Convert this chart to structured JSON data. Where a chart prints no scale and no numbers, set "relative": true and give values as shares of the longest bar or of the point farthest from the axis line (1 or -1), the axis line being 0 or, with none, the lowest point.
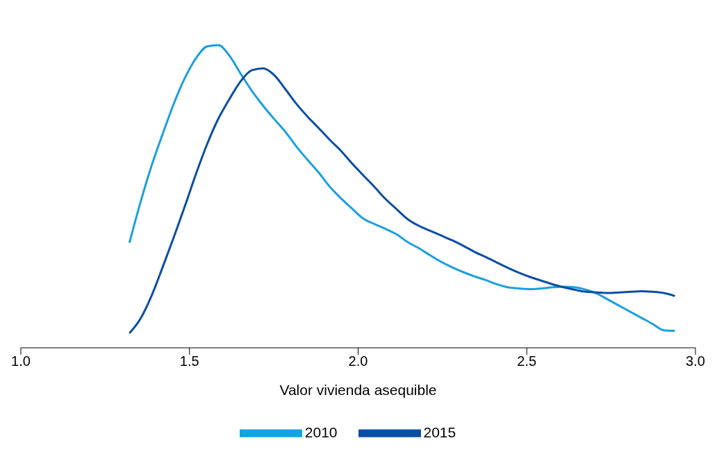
{
  "chart_data": {
    "type": "line",
    "relative": true,
    "xlabel": "Valor vivienda asequible",
    "xlim": [
      1.0,
      3.0
    ],
    "xticks": [
      {
        "value": 1.0,
        "label": "1.0"
      },
      {
        "value": 1.5,
        "label": "1.5"
      },
      {
        "value": 2.0,
        "label": "2.0"
      },
      {
        "value": 2.5,
        "label": "2.5"
      },
      {
        "value": 3.0,
        "label": "3.0"
      }
    ],
    "x": [
      1.322,
      1.355,
      1.388,
      1.421,
      1.454,
      1.487,
      1.52,
      1.553,
      1.586,
      1.619,
      1.652,
      1.685,
      1.718,
      1.751,
      1.784,
      1.817,
      1.85,
      1.883,
      1.916,
      1.949,
      1.982,
      2.015,
      2.048,
      2.081,
      2.114,
      2.147,
      2.18,
      2.213,
      2.246,
      2.279,
      2.312,
      2.345,
      2.378,
      2.411,
      2.444,
      2.477,
      2.51,
      2.543,
      2.576,
      2.609,
      2.642,
      2.675,
      2.708,
      2.741,
      2.774,
      2.807,
      2.84,
      2.873,
      2.906,
      2.939
    ],
    "series": [
      {
        "name": "2010",
        "color": "#1a9fe0",
        "values": [
          0.347,
          0.482,
          0.603,
          0.708,
          0.808,
          0.893,
          0.958,
          0.996,
          1.0,
          0.964,
          0.905,
          0.849,
          0.8,
          0.756,
          0.714,
          0.665,
          0.621,
          0.579,
          0.532,
          0.494,
          0.46,
          0.427,
          0.409,
          0.393,
          0.375,
          0.349,
          0.329,
          0.306,
          0.284,
          0.266,
          0.25,
          0.236,
          0.224,
          0.21,
          0.2,
          0.196,
          0.194,
          0.196,
          0.2,
          0.202,
          0.2,
          0.192,
          0.179,
          0.159,
          0.139,
          0.119,
          0.099,
          0.079,
          0.058,
          0.056
        ]
      },
      {
        "name": "2015",
        "color": "#0b4ea2",
        "values": [
          0.048,
          0.097,
          0.173,
          0.268,
          0.367,
          0.47,
          0.577,
          0.675,
          0.758,
          0.823,
          0.881,
          0.917,
          0.923,
          0.901,
          0.855,
          0.806,
          0.764,
          0.726,
          0.687,
          0.651,
          0.609,
          0.57,
          0.532,
          0.492,
          0.458,
          0.425,
          0.403,
          0.387,
          0.371,
          0.355,
          0.337,
          0.317,
          0.3,
          0.282,
          0.264,
          0.248,
          0.234,
          0.222,
          0.21,
          0.2,
          0.192,
          0.185,
          0.183,
          0.181,
          0.183,
          0.185,
          0.187,
          0.185,
          0.181,
          0.171
        ]
      }
    ],
    "grid": false,
    "legend": "bottom",
    "marker": "none",
    "line_style": "solid"
  }
}
